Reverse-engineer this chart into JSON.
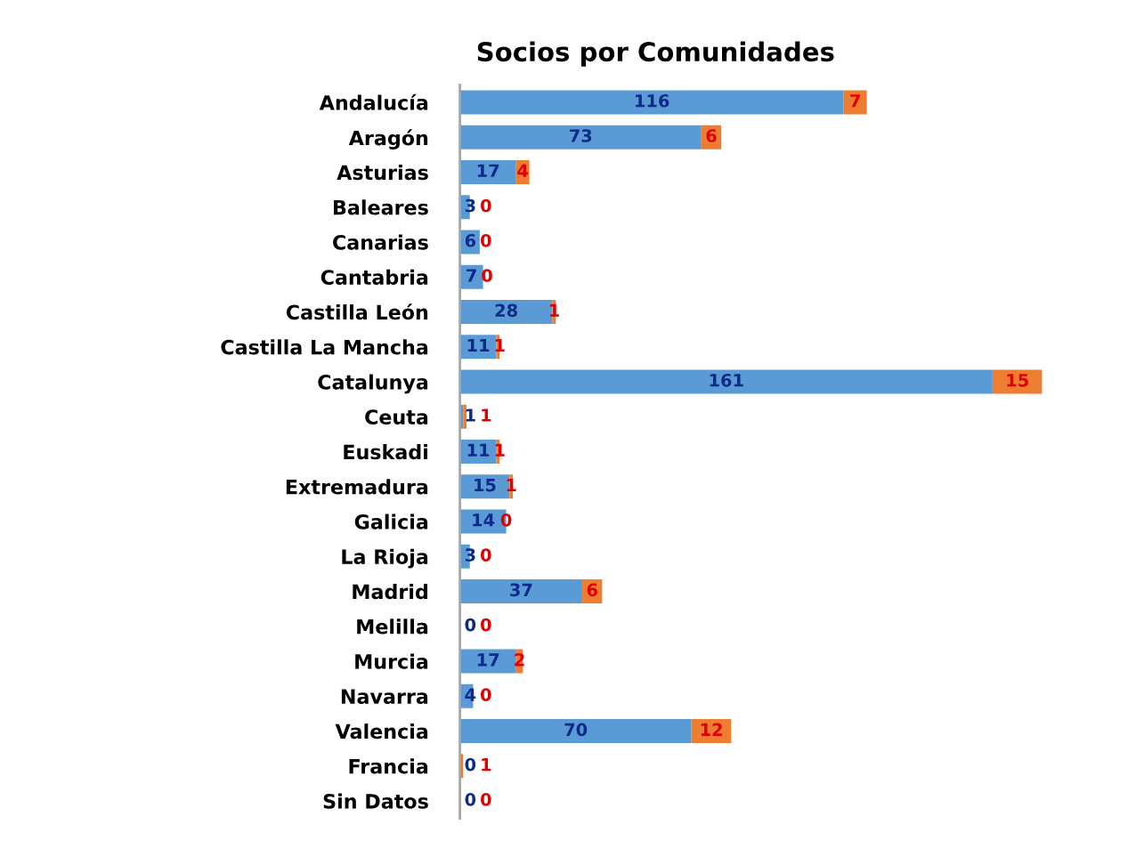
{
  "chart_data": {
    "type": "bar",
    "orientation": "horizontal",
    "stacked": true,
    "data_labels": true,
    "grid": false,
    "legend": false,
    "tick_labels": "y",
    "title": "Socios por Comunidades",
    "categories": [
      "Andalucía",
      "Aragón",
      "Asturias",
      "Baleares",
      "Canarias",
      "Cantabria",
      "Castilla León",
      "Castilla La Mancha",
      "Catalunya",
      "Ceuta",
      "Euskadi",
      "Extremadura",
      "Galicia",
      "La Rioja",
      "Madrid",
      "Melilla",
      "Murcia",
      "Navarra",
      "Valencia",
      "Francia",
      "Sin Datos"
    ],
    "series": [
      {
        "color": "#5b9bd5",
        "values": [
          116,
          73,
          17,
          3,
          6,
          7,
          28,
          11,
          161,
          1,
          11,
          15,
          14,
          3,
          37,
          0,
          17,
          4,
          70,
          0,
          0
        ]
      },
      {
        "color": "#ed7d31",
        "values": [
          7,
          6,
          4,
          0,
          0,
          0,
          1,
          1,
          15,
          1,
          1,
          1,
          0,
          0,
          6,
          0,
          2,
          0,
          12,
          1,
          0
        ]
      }
    ]
  }
}
